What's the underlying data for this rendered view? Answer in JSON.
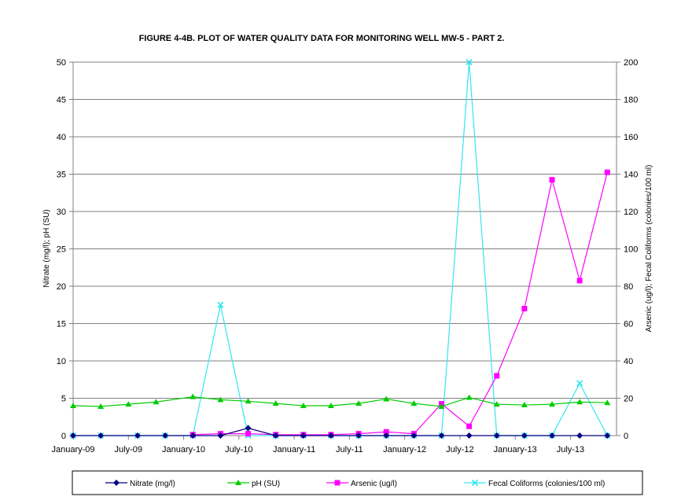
{
  "chart_data": {
    "type": "line",
    "title": "FIGURE 4-4B. PLOT OF WATER QUALITY DATA FOR MONITORING WELL MW-5 - PART 2.",
    "ylabel_left": "Nitrate (mg/l); pH (SU)",
    "ylabel_right": "Arsenic (ug/l); Fecal Coliforms (colonies/100 ml)",
    "x_tick_labels": [
      "January-09",
      "July-09",
      "January-10",
      "July-10",
      "January-11",
      "July-11",
      "January-12",
      "July-12",
      "January-13",
      "July-13"
    ],
    "ylim_left": [
      0,
      50
    ],
    "y_ticks_left": [
      0,
      5,
      10,
      15,
      20,
      25,
      30,
      35,
      40,
      45,
      50
    ],
    "ylim_right": [
      0,
      200
    ],
    "y_ticks_right": [
      0,
      20,
      40,
      60,
      80,
      100,
      120,
      140,
      160,
      180,
      200
    ],
    "grid": "horizontal",
    "legend_position": "bottom",
    "series": [
      {
        "name": "Nitrate (mg/l)",
        "axis": "left",
        "color": "#000080",
        "marker": "diamond",
        "points": [
          [
            "2009-01",
            0
          ],
          [
            "2009-04",
            0
          ],
          [
            "2009-08",
            0
          ],
          [
            "2009-11",
            0
          ],
          [
            "2010-02",
            0
          ],
          [
            "2010-05",
            0
          ],
          [
            "2010-08",
            1
          ],
          [
            "2010-11",
            0
          ],
          [
            "2011-02",
            0
          ],
          [
            "2011-05",
            0
          ],
          [
            "2011-08",
            0
          ],
          [
            "2011-11",
            0
          ],
          [
            "2012-02",
            0
          ],
          [
            "2012-05",
            0
          ],
          [
            "2012-08",
            0
          ],
          [
            "2012-11",
            0
          ],
          [
            "2013-02",
            0
          ],
          [
            "2013-05",
            0
          ],
          [
            "2013-08",
            0
          ],
          [
            "2013-11",
            0
          ]
        ]
      },
      {
        "name": "pH (SU)",
        "axis": "left",
        "color": "#00cc00",
        "marker": "triangle",
        "points": [
          [
            "2009-01",
            4.0
          ],
          [
            "2009-04",
            3.9
          ],
          [
            "2009-07",
            4.2
          ],
          [
            "2009-10",
            4.5
          ],
          [
            "2010-02",
            5.2
          ],
          [
            "2010-05",
            4.8
          ],
          [
            "2010-08",
            4.6
          ],
          [
            "2010-11",
            4.3
          ],
          [
            "2011-02",
            4.0
          ],
          [
            "2011-05",
            4.0
          ],
          [
            "2011-08",
            4.3
          ],
          [
            "2011-11",
            4.9
          ],
          [
            "2012-02",
            4.3
          ],
          [
            "2012-05",
            3.9
          ],
          [
            "2012-08",
            5.1
          ],
          [
            "2012-11",
            4.2
          ],
          [
            "2013-02",
            4.1
          ],
          [
            "2013-05",
            4.2
          ],
          [
            "2013-08",
            4.5
          ],
          [
            "2013-11",
            4.4
          ]
        ]
      },
      {
        "name": "Arsenic (ug/l)",
        "axis": "right",
        "color": "#ff00ff",
        "marker": "square",
        "points": [
          [
            "2010-02",
            0.5
          ],
          [
            "2010-05",
            1
          ],
          [
            "2010-08",
            1
          ],
          [
            "2010-11",
            0.5
          ],
          [
            "2011-02",
            0.5
          ],
          [
            "2011-05",
            0.5
          ],
          [
            "2011-08",
            1
          ],
          [
            "2011-11",
            2
          ],
          [
            "2012-02",
            1
          ],
          [
            "2012-05",
            17
          ],
          [
            "2012-08",
            5
          ],
          [
            "2012-11",
            32
          ],
          [
            "2013-02",
            68
          ],
          [
            "2013-05",
            137
          ],
          [
            "2013-08",
            83
          ],
          [
            "2013-11",
            141
          ]
        ]
      },
      {
        "name": "Fecal Coliforms (colonies/100 ml)",
        "axis": "right",
        "color": "#33e6f0",
        "marker": "x",
        "points": [
          [
            "2009-01",
            0
          ],
          [
            "2009-04",
            0
          ],
          [
            "2009-08",
            0
          ],
          [
            "2009-11",
            0
          ],
          [
            "2010-02",
            0
          ],
          [
            "2010-05",
            70
          ],
          [
            "2010-08",
            0
          ],
          [
            "2010-11",
            0
          ],
          [
            "2011-02",
            0
          ],
          [
            "2011-05",
            0
          ],
          [
            "2011-08",
            0
          ],
          [
            "2011-11",
            0
          ],
          [
            "2012-02",
            0
          ],
          [
            "2012-05",
            0
          ],
          [
            "2012-08",
            200
          ],
          [
            "2012-11",
            0
          ],
          [
            "2013-02",
            0
          ],
          [
            "2013-05",
            0
          ],
          [
            "2013-08",
            28
          ],
          [
            "2013-11",
            0
          ]
        ]
      }
    ]
  }
}
